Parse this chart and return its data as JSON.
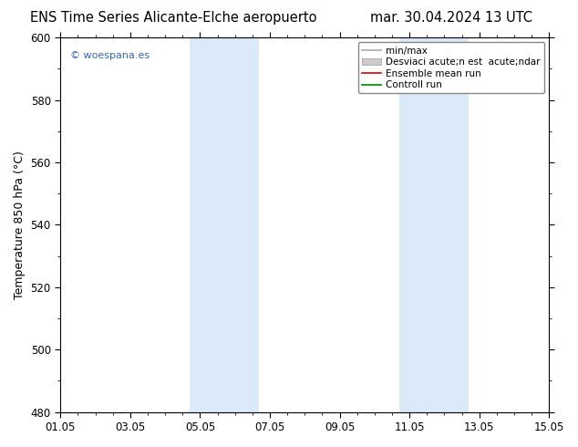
{
  "title_left": "ENS Time Series Alicante-Elche aeropuerto",
  "title_right": "mar. 30.04.2024 13 UTC",
  "ylabel": "Temperature 850 hPa (°C)",
  "ylim": [
    480,
    600
  ],
  "yticks": [
    480,
    500,
    520,
    540,
    560,
    580,
    600
  ],
  "xlim": [
    0,
    14
  ],
  "xtick_positions": [
    0,
    2,
    4,
    6,
    8,
    10,
    12,
    14
  ],
  "xtick_labels": [
    "01.05",
    "03.05",
    "05.05",
    "07.05",
    "09.05",
    "11.05",
    "13.05",
    "15.05"
  ],
  "shade_bands": [
    {
      "xmin": 3.7,
      "xmax": 5.7,
      "color": "#daeaf8"
    },
    {
      "xmin": 9.7,
      "xmax": 11.7,
      "color": "#daeaf8"
    }
  ],
  "watermark": "© woespana.es",
  "watermark_color": "#3366bb",
  "background_color": "#ffffff",
  "plot_bg_color": "#ffffff",
  "legend_label1": "min/max",
  "legend_label2": "Desviaci acute;n est  acute;ndar",
  "legend_label3": "Ensemble mean run",
  "legend_label4": "Controll run",
  "legend_color1": "#aaaaaa",
  "legend_color2": "#cccccc",
  "legend_color3": "#dd0000",
  "legend_color4": "#008800",
  "title_fontsize": 10.5,
  "axis_fontsize": 9,
  "tick_fontsize": 8.5,
  "legend_fontsize": 7.5
}
